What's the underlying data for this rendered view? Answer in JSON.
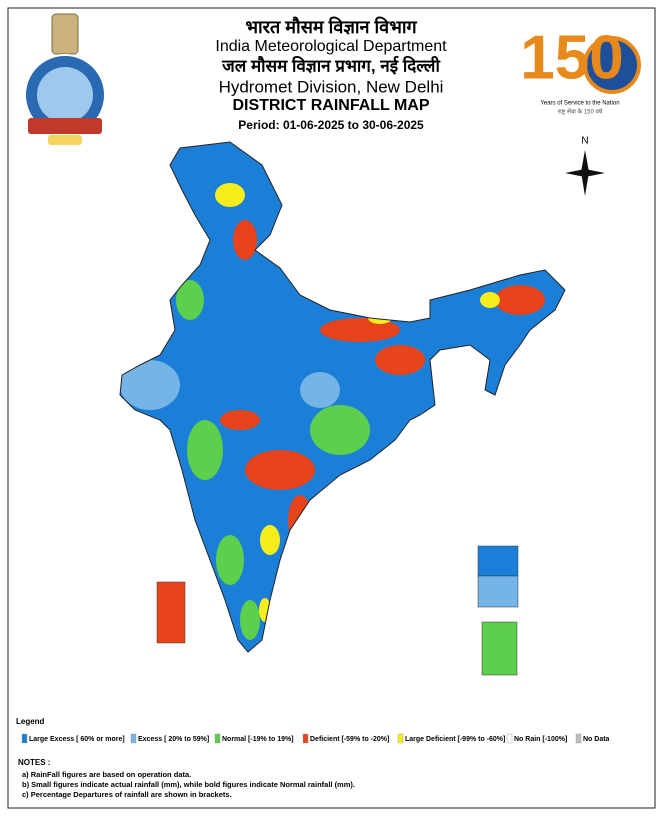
{
  "header": {
    "title_hindi": "भारत मौसम विज्ञान विभाग",
    "title": "India Meteorological Department",
    "subtitle_hindi": "जल मौसम विज्ञान प्रभाग, नई दिल्ली",
    "subtitle": "Hydromet Division, New Delhi",
    "map_title": "DISTRICT RAINFALL MAP",
    "period": "Period: 01-06-2025 to 30-06-2025"
  },
  "logo": {
    "number": "150",
    "tagline": "Years of Service to the Nation",
    "tagline_hindi": "राष्ट्र सेवा के 150 वर्ष"
  },
  "compass": "N",
  "legend": {
    "title": "Legend",
    "items": [
      {
        "label": "Large Excess [ 60% or more]",
        "color": "#1b7fd8"
      },
      {
        "label": "Excess [ 20% to 59%]",
        "color": "#74b4e6"
      },
      {
        "label": "Normal [-19% to 19%]",
        "color": "#5ccf4c"
      },
      {
        "label": "Deficient [-59% to -20%]",
        "color": "#e8441c"
      },
      {
        "label": "Large Deficient [-99% to -60%]",
        "color": "#f6ee1c"
      },
      {
        "label": "No Rain  [-100%]",
        "color": "#ffffff"
      },
      {
        "label": "No Data",
        "color": "#bdbdbd"
      }
    ]
  },
  "notes": {
    "title": "NOTES :",
    "items": [
      "a) RainFall figures are based on operation data.",
      "b) Small figures indicate actual rainfall (mm), while bold figures indicate Normal rainfall (mm).",
      "c) Percentage Departures of rainfall are shown in brackets."
    ]
  }
}
